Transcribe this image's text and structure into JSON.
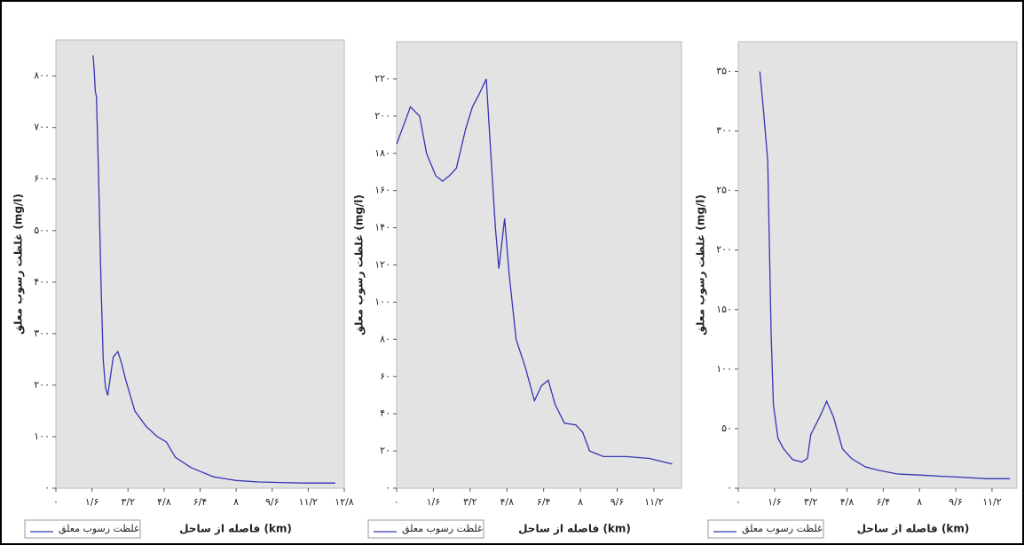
{
  "chart_data": [
    {
      "type": "line",
      "y_label": "غلظت رسوب معلق (mg/l)",
      "x_label": "فاصله از ساحل (km)",
      "xlim": [
        0,
        12.8
      ],
      "ylim": [
        0,
        870
      ],
      "xticks": [
        {
          "value": 0,
          "label": "۰"
        },
        {
          "value": 1.6,
          "label": "۱/۶"
        },
        {
          "value": 3.2,
          "label": "۳/۲"
        },
        {
          "value": 4.8,
          "label": "۴/۸"
        },
        {
          "value": 6.4,
          "label": "۶/۴"
        },
        {
          "value": 8,
          "label": "۸"
        },
        {
          "value": 9.6,
          "label": "۹/۶"
        },
        {
          "value": 11.2,
          "label": "۱۱/۲"
        },
        {
          "value": 12.8,
          "label": "۱۲/۸"
        }
      ],
      "yticks": [
        {
          "value": 0,
          "label": "۰"
        },
        {
          "value": 100,
          "label": "۱۰۰"
        },
        {
          "value": 200,
          "label": "۲۰۰"
        },
        {
          "value": 300,
          "label": "۳۰۰"
        },
        {
          "value": 400,
          "label": "۴۰۰"
        },
        {
          "value": 500,
          "label": "۵۰۰"
        },
        {
          "value": 600,
          "label": "۶۰۰"
        },
        {
          "value": 700,
          "label": "۷۰۰"
        },
        {
          "value": 800,
          "label": "۸۰۰"
        }
      ],
      "x": [
        1.65,
        1.7,
        1.75,
        1.8,
        1.9,
        2.0,
        2.1,
        2.2,
        2.3,
        2.4,
        2.55,
        2.75,
        2.9,
        3.1,
        3.5,
        4.0,
        4.5,
        4.9,
        5.3,
        6.0,
        7.0,
        8.0,
        9.0,
        10.0,
        11.0,
        12.4
      ],
      "series": [
        {
          "name": "غلظت رسوب معلق",
          "color": "#3535b5",
          "values": [
            840,
            810,
            770,
            760,
            600,
            400,
            250,
            195,
            180,
            210,
            255,
            265,
            245,
            210,
            150,
            120,
            100,
            90,
            60,
            40,
            22,
            15,
            12,
            11,
            10,
            10
          ]
        }
      ]
    },
    {
      "type": "line",
      "y_label": "غلظت رسوب معلق (mg/l)",
      "x_label": "فاصله از ساحل (km)",
      "xlim": [
        0,
        12.4
      ],
      "ylim": [
        0,
        240
      ],
      "xticks": [
        {
          "value": 0,
          "label": "۰"
        },
        {
          "value": 1.6,
          "label": "۱/۶"
        },
        {
          "value": 3.2,
          "label": "۳/۲"
        },
        {
          "value": 4.8,
          "label": "۴/۸"
        },
        {
          "value": 6.4,
          "label": "۶/۴"
        },
        {
          "value": 8,
          "label": "۸"
        },
        {
          "value": 9.6,
          "label": "۹/۶"
        },
        {
          "value": 11.2,
          "label": "۱۱/۲"
        }
      ],
      "yticks": [
        {
          "value": 0,
          "label": "۰"
        },
        {
          "value": 20,
          "label": "۲۰"
        },
        {
          "value": 40,
          "label": "۴۰"
        },
        {
          "value": 60,
          "label": "۶۰"
        },
        {
          "value": 80,
          "label": "۸۰"
        },
        {
          "value": 100,
          "label": "۱۰۰"
        },
        {
          "value": 120,
          "label": "۱۲۰"
        },
        {
          "value": 140,
          "label": "۱۴۰"
        },
        {
          "value": 160,
          "label": "۱۶۰"
        },
        {
          "value": 180,
          "label": "۱۸۰"
        },
        {
          "value": 200,
          "label": "۲۰۰"
        },
        {
          "value": 220,
          "label": "۲۲۰"
        }
      ],
      "x": [
        0,
        0.3,
        0.6,
        1.0,
        1.3,
        1.7,
        2.0,
        2.3,
        2.6,
        3.0,
        3.3,
        3.6,
        3.9,
        4.1,
        4.3,
        4.45,
        4.7,
        4.9,
        5.2,
        5.6,
        6.0,
        6.3,
        6.6,
        6.9,
        7.3,
        7.8,
        8.1,
        8.4,
        9.0,
        10.0,
        11.0,
        12.0
      ],
      "series": [
        {
          "name": "غلظت رسوب معلق",
          "color": "#3535b5",
          "values": [
            185,
            195,
            205,
            200,
            180,
            168,
            165,
            168,
            172,
            193,
            205,
            212,
            220,
            180,
            140,
            118,
            145,
            115,
            80,
            65,
            47,
            55,
            58,
            45,
            35,
            34,
            30,
            20,
            17,
            17,
            16,
            13
          ]
        }
      ]
    },
    {
      "type": "line",
      "y_label": "غلظت رسوب معلق (mg/l)",
      "x_label": "فاصله از ساحل (km)",
      "xlim": [
        0,
        12.3
      ],
      "ylim": [
        0,
        375
      ],
      "xticks": [
        {
          "value": 0,
          "label": "۰"
        },
        {
          "value": 1.6,
          "label": "۱/۶"
        },
        {
          "value": 3.2,
          "label": "۳/۲"
        },
        {
          "value": 4.8,
          "label": "۴/۸"
        },
        {
          "value": 6.4,
          "label": "۶/۴"
        },
        {
          "value": 8,
          "label": "۸"
        },
        {
          "value": 9.6,
          "label": "۹/۶"
        },
        {
          "value": 11.2,
          "label": "۱۱/۲"
        }
      ],
      "yticks": [
        {
          "value": 0,
          "label": "۰"
        },
        {
          "value": 50,
          "label": "۵۰"
        },
        {
          "value": 100,
          "label": "۱۰۰"
        },
        {
          "value": 150,
          "label": "۱۵۰"
        },
        {
          "value": 200,
          "label": "۲۰۰"
        },
        {
          "value": 250,
          "label": "۲۵۰"
        },
        {
          "value": 300,
          "label": "۳۰۰"
        },
        {
          "value": 350,
          "label": "۳۵۰"
        }
      ],
      "x": [
        0.95,
        1.1,
        1.3,
        1.45,
        1.55,
        1.75,
        2.0,
        2.4,
        2.8,
        3.05,
        3.2,
        3.6,
        3.9,
        4.2,
        4.6,
        5.0,
        5.6,
        6.2,
        7.0,
        8.0,
        9.0,
        10.0,
        11.0,
        12.0
      ],
      "series": [
        {
          "name": "غلظت رسوب معلق",
          "color": "#3535b5",
          "values": [
            350,
            320,
            275,
            130,
            70,
            42,
            33,
            24,
            22,
            25,
            45,
            60,
            73,
            60,
            33,
            25,
            18,
            15,
            12,
            11,
            10,
            9,
            8,
            8
          ]
        }
      ]
    }
  ]
}
